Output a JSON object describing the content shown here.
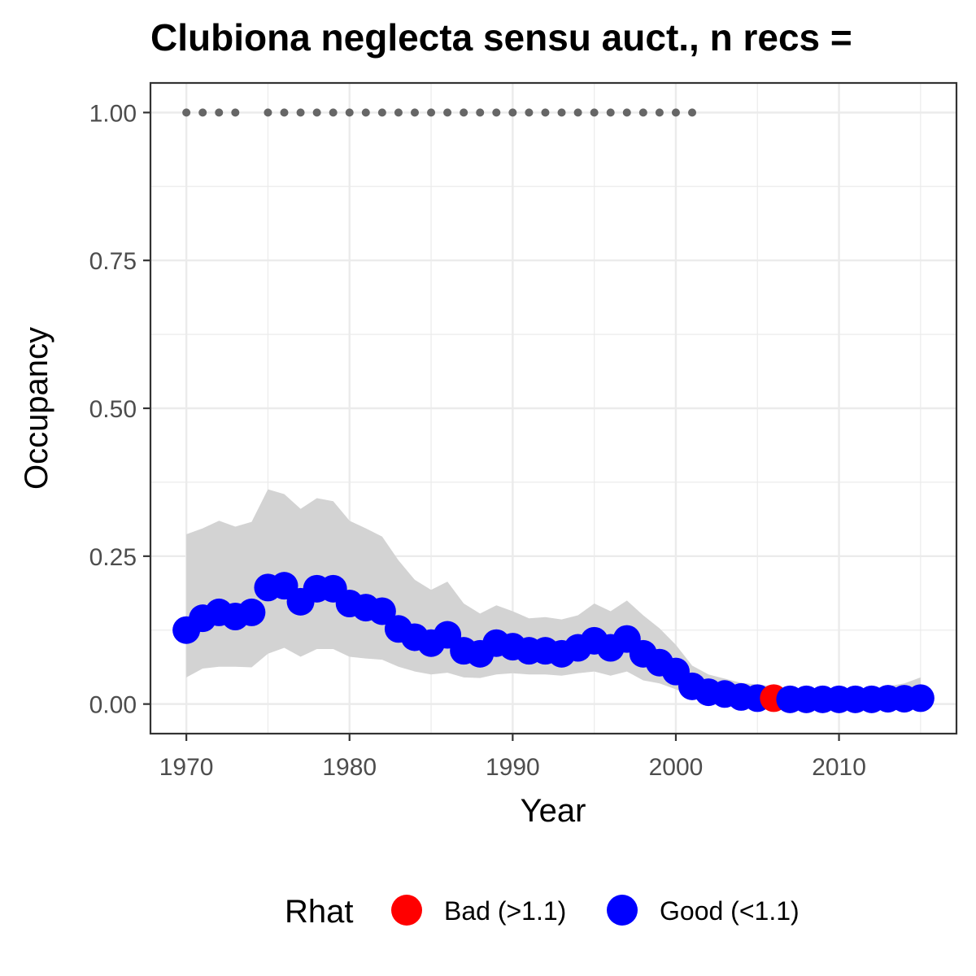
{
  "chart_data": {
    "type": "line",
    "title": "Clubiona neglecta sensu auct., n recs = ",
    "xlabel": "Year",
    "ylabel": "Occupancy",
    "xlim": [
      1967.8,
      2017.2
    ],
    "ylim": [
      -0.05,
      1.05
    ],
    "x_ticks": [
      1970,
      1980,
      1990,
      2000,
      2010
    ],
    "y_ticks": [
      0.0,
      0.25,
      0.5,
      0.75,
      1.0
    ],
    "y_tick_labels": [
      "0.00",
      "0.25",
      "0.50",
      "0.75",
      "1.00"
    ],
    "grid": true,
    "legend": {
      "title": "Rhat",
      "position": "bottom",
      "items": [
        {
          "label": "Bad (>1.1)",
          "color": "#ff0000"
        },
        {
          "label": "Good (<1.1)",
          "color": "#0000ff"
        }
      ]
    },
    "colors": {
      "good": "#0000ff",
      "bad": "#ff0000",
      "ribbon": "#d3d3d3",
      "record_dots": "#666666"
    },
    "series": [
      {
        "rhat_status_key": "good",
        "x": [
          1970,
          1971,
          1972,
          1973,
          1974,
          1975,
          1976,
          1977,
          1978,
          1979,
          1980,
          1981,
          1982,
          1983,
          1984,
          1985,
          1986,
          1987,
          1988,
          1989,
          1990,
          1991,
          1992,
          1993,
          1994,
          1995,
          1996,
          1997,
          1998,
          1999,
          2000,
          2001,
          2002,
          2003,
          2004,
          2005,
          2006,
          2007,
          2008,
          2009,
          2010,
          2011,
          2012,
          2013,
          2014,
          2015
        ],
        "y": [
          0.125,
          0.145,
          0.155,
          0.148,
          0.155,
          0.197,
          0.2,
          0.173,
          0.195,
          0.195,
          0.17,
          0.163,
          0.157,
          0.127,
          0.113,
          0.103,
          0.117,
          0.09,
          0.085,
          0.103,
          0.097,
          0.09,
          0.09,
          0.085,
          0.095,
          0.107,
          0.095,
          0.11,
          0.085,
          0.07,
          0.055,
          0.03,
          0.02,
          0.017,
          0.012,
          0.01,
          0.01,
          0.008,
          0.008,
          0.008,
          0.008,
          0.008,
          0.008,
          0.009,
          0.009,
          0.01
        ],
        "rhat_status": [
          "good",
          "good",
          "good",
          "good",
          "good",
          "good",
          "good",
          "good",
          "good",
          "good",
          "good",
          "good",
          "good",
          "good",
          "good",
          "good",
          "good",
          "good",
          "good",
          "good",
          "good",
          "good",
          "good",
          "good",
          "good",
          "good",
          "good",
          "good",
          "good",
          "good",
          "good",
          "good",
          "good",
          "good",
          "good",
          "good",
          "bad",
          "good",
          "good",
          "good",
          "good",
          "good",
          "good",
          "good",
          "good",
          "good"
        ],
        "lower": [
          0.045,
          0.06,
          0.063,
          0.063,
          0.062,
          0.085,
          0.095,
          0.08,
          0.093,
          0.093,
          0.08,
          0.077,
          0.075,
          0.063,
          0.055,
          0.05,
          0.053,
          0.045,
          0.044,
          0.05,
          0.052,
          0.05,
          0.05,
          0.048,
          0.052,
          0.055,
          0.048,
          0.055,
          0.04,
          0.035,
          0.025,
          0.012,
          0.006,
          0.004,
          0.002,
          0.002,
          0.002,
          0.001,
          0.001,
          0.001,
          0.001,
          0.001,
          0.001,
          0.001,
          0.001,
          0.001
        ],
        "upper": [
          0.287,
          0.297,
          0.31,
          0.3,
          0.308,
          0.363,
          0.355,
          0.33,
          0.348,
          0.343,
          0.31,
          0.297,
          0.283,
          0.243,
          0.21,
          0.193,
          0.207,
          0.17,
          0.153,
          0.167,
          0.157,
          0.145,
          0.147,
          0.143,
          0.15,
          0.17,
          0.157,
          0.175,
          0.15,
          0.128,
          0.1,
          0.065,
          0.05,
          0.043,
          0.036,
          0.033,
          0.03,
          0.026,
          0.025,
          0.025,
          0.025,
          0.026,
          0.027,
          0.03,
          0.035,
          0.045
        ]
      }
    ],
    "record_years": [
      1970,
      1971,
      1972,
      1973,
      1975,
      1976,
      1977,
      1978,
      1979,
      1980,
      1981,
      1982,
      1983,
      1984,
      1985,
      1986,
      1987,
      1988,
      1989,
      1990,
      1991,
      1992,
      1993,
      1994,
      1995,
      1996,
      1997,
      1998,
      1999,
      2000,
      2001
    ],
    "record_y": 1.0
  }
}
